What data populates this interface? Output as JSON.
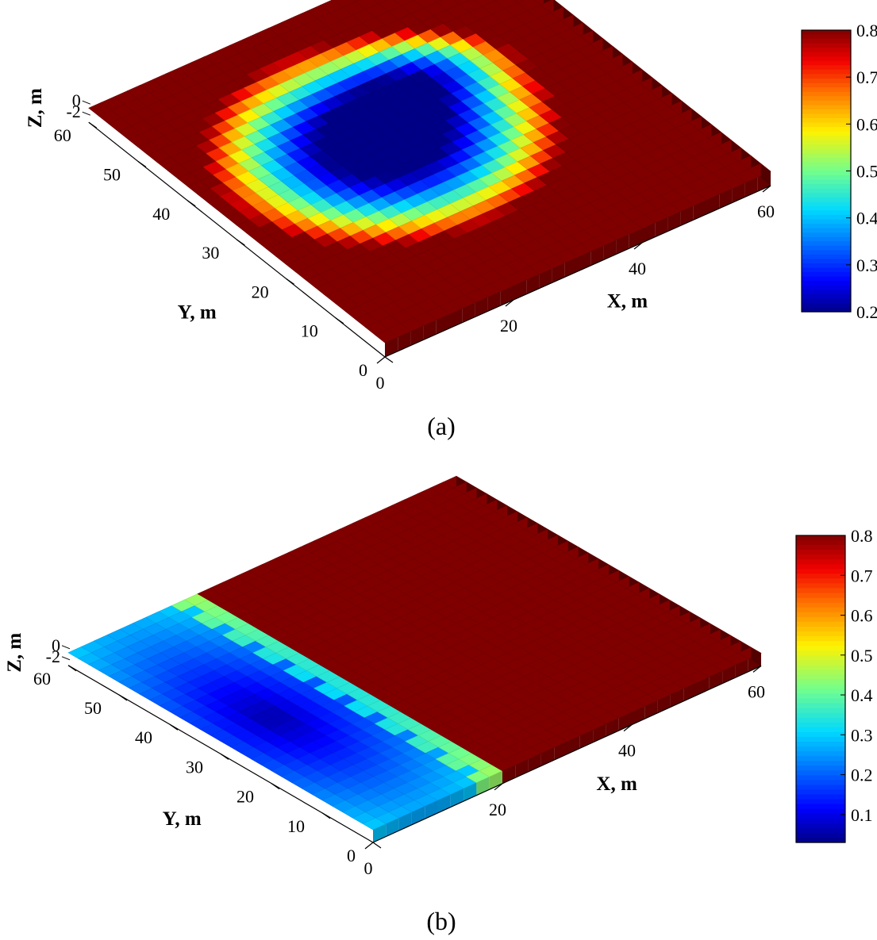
{
  "chart_data": [
    {
      "type": "heatmap",
      "panel_caption": "(a)",
      "xlabel": "X, m",
      "ylabel": "Y, m",
      "zlabel": "Z, m",
      "x_ticks": [
        "0",
        "20",
        "40",
        "60"
      ],
      "y_ticks": [
        "0",
        "10",
        "20",
        "30",
        "40",
        "50",
        "60"
      ],
      "z_ticks": [
        "0",
        "-2"
      ],
      "colorbar_ticks": [
        "0.8",
        "0.7",
        "0.6",
        "0.5",
        "0.4",
        "0.3",
        "0.2"
      ],
      "clim": [
        0.2,
        0.8
      ],
      "xlim": [
        0,
        60
      ],
      "ylim": [
        0,
        60
      ],
      "colormap": "jet",
      "field": "low values (~0.2) in an interior region centered near X≈25 m, Y≈33 m, rising through yellow to saturated red (0.8) toward all domain edges"
    },
    {
      "type": "heatmap",
      "panel_caption": "(b)",
      "xlabel": "X, m",
      "ylabel": "Y, m",
      "zlabel": "Z, m",
      "x_ticks": [
        "0",
        "20",
        "40",
        "60"
      ],
      "y_ticks": [
        "0",
        "10",
        "20",
        "30",
        "40",
        "50",
        "60"
      ],
      "z_ticks": [
        "0",
        "-2"
      ],
      "colorbar_ticks": [
        "0.8",
        "0.7",
        "0.6",
        "0.5",
        "0.4",
        "0.3",
        "0.2",
        "0.1"
      ],
      "clim": [
        0.03,
        0.8
      ],
      "xlim": [
        0,
        60
      ],
      "ylim": [
        0,
        60
      ],
      "colormap": "jet",
      "field": "low values (~0.05–0.3) for X below a stepped front near X≈17–20 m, saturated (0.8) beyond the front"
    }
  ]
}
